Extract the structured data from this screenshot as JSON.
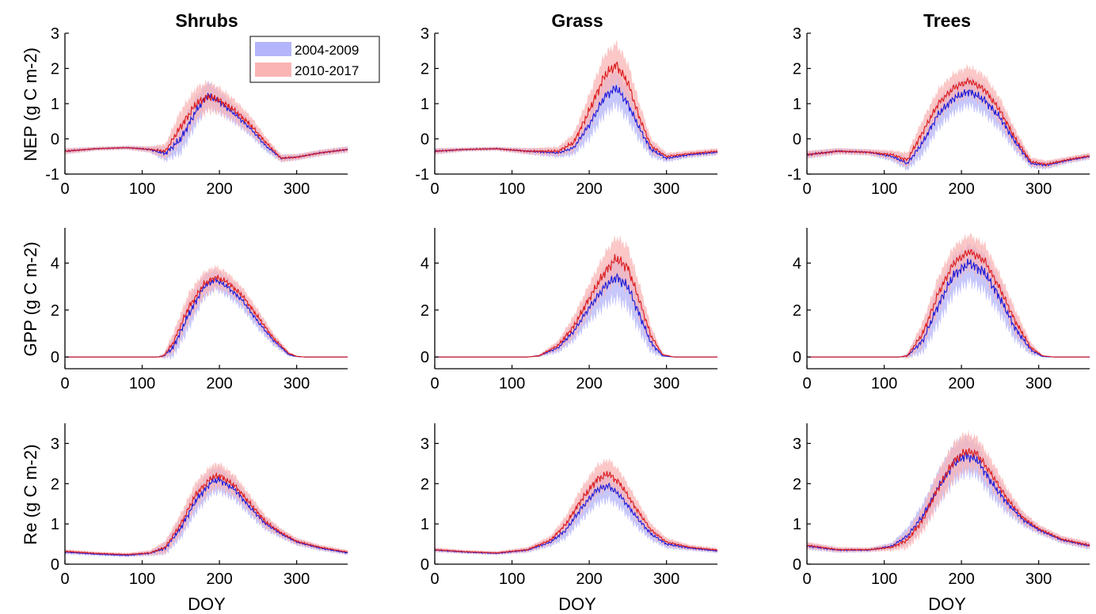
{
  "colors": {
    "period1": "#1a1adc",
    "period2": "#dc1a1a",
    "band1": "#b4b4fa",
    "band2": "#fab4b4"
  },
  "legend": [
    "2004-2009",
    "2010-2017"
  ],
  "columns": [
    "Shrubs",
    "Grass",
    "Trees"
  ],
  "rows": [
    {
      "ylabel": "NEP (g C m-2)",
      "ylim": [
        -1,
        3
      ],
      "yticks": [
        -1,
        0,
        1,
        2,
        3
      ]
    },
    {
      "ylabel": "GPP (g C m-2)",
      "ylim": [
        -0.5,
        5.5
      ],
      "yticks": [
        0,
        2,
        4
      ]
    },
    {
      "ylabel": "Re (g C m-2)",
      "ylim": [
        0,
        3.5
      ],
      "yticks": [
        0,
        1,
        2,
        3
      ]
    }
  ],
  "xlabel": "DOY",
  "xlim": [
    0,
    366
  ],
  "xticks": [
    0,
    100,
    200,
    300
  ],
  "chart_data": [
    {
      "type": "line",
      "panel": "Shrubs NEP",
      "ylim": [
        -1,
        3
      ],
      "x": [
        0,
        40,
        80,
        110,
        130,
        150,
        170,
        185,
        200,
        220,
        240,
        260,
        280,
        300,
        330,
        366
      ],
      "series": [
        {
          "name": "2004-2009",
          "mean": [
            -0.35,
            -0.28,
            -0.25,
            -0.3,
            -0.42,
            0.0,
            0.8,
            1.25,
            1.05,
            0.7,
            0.3,
            -0.2,
            -0.55,
            -0.52,
            -0.4,
            -0.3
          ],
          "sd": [
            0.08,
            0.05,
            0.05,
            0.08,
            0.2,
            0.4,
            0.4,
            0.35,
            0.3,
            0.25,
            0.2,
            0.15,
            0.1,
            0.08,
            0.08,
            0.08
          ]
        },
        {
          "name": "2010-2017",
          "mean": [
            -0.35,
            -0.28,
            -0.25,
            -0.3,
            -0.35,
            0.35,
            1.0,
            1.2,
            1.1,
            0.8,
            0.4,
            -0.1,
            -0.55,
            -0.52,
            -0.4,
            -0.3
          ],
          "sd": [
            0.08,
            0.05,
            0.05,
            0.08,
            0.2,
            0.45,
            0.45,
            0.4,
            0.35,
            0.3,
            0.25,
            0.15,
            0.1,
            0.08,
            0.08,
            0.08
          ]
        }
      ]
    },
    {
      "type": "line",
      "panel": "Grass NEP",
      "ylim": [
        -1,
        3
      ],
      "x": [
        0,
        40,
        80,
        120,
        160,
        180,
        200,
        220,
        235,
        250,
        265,
        280,
        300,
        330,
        366
      ],
      "series": [
        {
          "name": "2004-2009",
          "mean": [
            -0.35,
            -0.3,
            -0.28,
            -0.35,
            -0.4,
            -0.25,
            0.4,
            1.2,
            1.45,
            1.0,
            0.3,
            -0.3,
            -0.55,
            -0.45,
            -0.38
          ],
          "sd": [
            0.08,
            0.05,
            0.05,
            0.08,
            0.12,
            0.2,
            0.4,
            0.5,
            0.5,
            0.45,
            0.35,
            0.2,
            0.1,
            0.08,
            0.08
          ]
        },
        {
          "name": "2010-2017",
          "mean": [
            -0.35,
            -0.3,
            -0.28,
            -0.35,
            -0.35,
            -0.1,
            0.8,
            1.8,
            2.1,
            1.6,
            0.6,
            -0.2,
            -0.5,
            -0.42,
            -0.35
          ],
          "sd": [
            0.08,
            0.05,
            0.05,
            0.08,
            0.12,
            0.25,
            0.45,
            0.6,
            0.6,
            0.55,
            0.4,
            0.2,
            0.1,
            0.08,
            0.08
          ]
        }
      ]
    },
    {
      "type": "line",
      "panel": "Trees NEP",
      "ylim": [
        -1,
        3
      ],
      "x": [
        0,
        40,
        80,
        110,
        130,
        150,
        170,
        190,
        210,
        230,
        250,
        270,
        290,
        310,
        340,
        366
      ],
      "series": [
        {
          "name": "2004-2009",
          "mean": [
            -0.45,
            -0.35,
            -0.38,
            -0.5,
            -0.7,
            -0.1,
            0.7,
            1.15,
            1.35,
            1.1,
            0.6,
            -0.1,
            -0.7,
            -0.75,
            -0.6,
            -0.5
          ],
          "sd": [
            0.1,
            0.08,
            0.08,
            0.12,
            0.18,
            0.35,
            0.4,
            0.4,
            0.4,
            0.4,
            0.35,
            0.25,
            0.12,
            0.1,
            0.08,
            0.08
          ]
        },
        {
          "name": "2010-2017",
          "mean": [
            -0.45,
            -0.35,
            -0.38,
            -0.45,
            -0.6,
            0.2,
            1.0,
            1.45,
            1.65,
            1.4,
            0.8,
            0.0,
            -0.65,
            -0.72,
            -0.58,
            -0.48
          ],
          "sd": [
            0.1,
            0.08,
            0.08,
            0.12,
            0.2,
            0.35,
            0.4,
            0.4,
            0.4,
            0.4,
            0.35,
            0.25,
            0.12,
            0.1,
            0.08,
            0.08
          ]
        }
      ]
    },
    {
      "type": "line",
      "panel": "Shrubs GPP",
      "ylim": [
        -0.5,
        5.5
      ],
      "x": [
        0,
        120,
        128,
        140,
        160,
        180,
        195,
        210,
        230,
        250,
        270,
        290,
        300,
        310,
        366
      ],
      "series": [
        {
          "name": "2004-2009",
          "mean": [
            0,
            0,
            0.05,
            0.4,
            1.8,
            3.0,
            3.3,
            3.0,
            2.4,
            1.5,
            0.7,
            0.1,
            0.02,
            0,
            0
          ],
          "sd": [
            0,
            0,
            0.1,
            0.4,
            0.6,
            0.5,
            0.4,
            0.4,
            0.35,
            0.3,
            0.2,
            0.08,
            0.02,
            0,
            0
          ]
        },
        {
          "name": "2010-2017",
          "mean": [
            0,
            0,
            0.05,
            0.6,
            2.1,
            3.1,
            3.4,
            3.2,
            2.6,
            1.7,
            0.8,
            0.15,
            0.03,
            0,
            0
          ],
          "sd": [
            0,
            0,
            0.1,
            0.4,
            0.6,
            0.5,
            0.45,
            0.4,
            0.35,
            0.3,
            0.2,
            0.08,
            0.02,
            0,
            0
          ]
        }
      ]
    },
    {
      "type": "line",
      "panel": "Grass GPP",
      "ylim": [
        -0.5,
        5.5
      ],
      "x": [
        0,
        120,
        135,
        160,
        180,
        200,
        220,
        235,
        250,
        265,
        280,
        295,
        310,
        366
      ],
      "series": [
        {
          "name": "2004-2009",
          "mean": [
            0,
            0,
            0.05,
            0.4,
            1.1,
            2.1,
            3.0,
            3.4,
            3.0,
            1.8,
            0.6,
            0.05,
            0,
            0
          ],
          "sd": [
            0,
            0,
            0.05,
            0.2,
            0.4,
            0.6,
            0.8,
            0.9,
            0.9,
            0.7,
            0.4,
            0.05,
            0,
            0
          ]
        },
        {
          "name": "2010-2017",
          "mean": [
            0,
            0,
            0.05,
            0.5,
            1.3,
            2.5,
            3.6,
            4.2,
            3.8,
            2.4,
            0.9,
            0.1,
            0,
            0
          ],
          "sd": [
            0,
            0,
            0.05,
            0.2,
            0.45,
            0.6,
            0.8,
            0.9,
            0.9,
            0.7,
            0.4,
            0.05,
            0,
            0
          ]
        }
      ]
    },
    {
      "type": "line",
      "panel": "Trees GPP",
      "ylim": [
        -0.5,
        5.5
      ],
      "x": [
        0,
        120,
        130,
        150,
        170,
        190,
        210,
        230,
        250,
        270,
        290,
        305,
        320,
        366
      ],
      "series": [
        {
          "name": "2004-2009",
          "mean": [
            0,
            0,
            0.05,
            0.7,
            2.2,
            3.5,
            4.0,
            3.6,
            2.5,
            1.2,
            0.3,
            0.02,
            0,
            0
          ],
          "sd": [
            0,
            0,
            0.1,
            0.5,
            0.8,
            0.8,
            0.8,
            0.8,
            0.7,
            0.5,
            0.2,
            0.02,
            0,
            0
          ]
        },
        {
          "name": "2010-2017",
          "mean": [
            0,
            0,
            0.05,
            1.0,
            2.7,
            4.0,
            4.5,
            4.1,
            2.9,
            1.5,
            0.4,
            0.05,
            0,
            0
          ],
          "sd": [
            0,
            0,
            0.1,
            0.5,
            0.7,
            0.7,
            0.7,
            0.7,
            0.6,
            0.5,
            0.2,
            0.02,
            0,
            0
          ]
        }
      ]
    },
    {
      "type": "line",
      "panel": "Shrubs Re",
      "ylim": [
        0,
        3.5
      ],
      "x": [
        0,
        40,
        80,
        110,
        130,
        150,
        170,
        190,
        200,
        220,
        240,
        260,
        280,
        300,
        330,
        366
      ],
      "series": [
        {
          "name": "2004-2009",
          "mean": [
            0.3,
            0.25,
            0.22,
            0.27,
            0.4,
            0.9,
            1.6,
            2.05,
            2.1,
            1.85,
            1.4,
            1.0,
            0.75,
            0.55,
            0.4,
            0.28
          ],
          "sd": [
            0.05,
            0.04,
            0.04,
            0.06,
            0.15,
            0.25,
            0.3,
            0.3,
            0.3,
            0.25,
            0.2,
            0.15,
            0.1,
            0.08,
            0.06,
            0.05
          ]
        },
        {
          "name": "2010-2017",
          "mean": [
            0.32,
            0.27,
            0.24,
            0.28,
            0.42,
            1.0,
            1.75,
            2.15,
            2.2,
            1.95,
            1.5,
            1.05,
            0.78,
            0.57,
            0.42,
            0.3
          ],
          "sd": [
            0.05,
            0.04,
            0.04,
            0.06,
            0.15,
            0.25,
            0.3,
            0.3,
            0.3,
            0.25,
            0.2,
            0.15,
            0.1,
            0.08,
            0.06,
            0.05
          ]
        }
      ]
    },
    {
      "type": "line",
      "panel": "Grass Re",
      "ylim": [
        0,
        3.5
      ],
      "x": [
        0,
        40,
        80,
        120,
        150,
        170,
        190,
        210,
        225,
        240,
        260,
        280,
        300,
        330,
        366
      ],
      "series": [
        {
          "name": "2004-2009",
          "mean": [
            0.35,
            0.3,
            0.27,
            0.35,
            0.55,
            0.85,
            1.4,
            1.85,
            1.95,
            1.7,
            1.2,
            0.75,
            0.5,
            0.4,
            0.33
          ],
          "sd": [
            0.05,
            0.04,
            0.04,
            0.06,
            0.1,
            0.2,
            0.3,
            0.35,
            0.35,
            0.3,
            0.25,
            0.15,
            0.1,
            0.06,
            0.05
          ]
        },
        {
          "name": "2010-2017",
          "mean": [
            0.36,
            0.31,
            0.28,
            0.36,
            0.6,
            1.0,
            1.6,
            2.1,
            2.25,
            2.0,
            1.4,
            0.85,
            0.55,
            0.42,
            0.35
          ],
          "sd": [
            0.05,
            0.04,
            0.04,
            0.06,
            0.1,
            0.2,
            0.3,
            0.35,
            0.35,
            0.3,
            0.25,
            0.15,
            0.1,
            0.06,
            0.05
          ]
        }
      ]
    },
    {
      "type": "line",
      "panel": "Trees Re",
      "ylim": [
        0,
        3.5
      ],
      "x": [
        0,
        40,
        80,
        110,
        130,
        150,
        170,
        190,
        205,
        220,
        240,
        260,
        280,
        300,
        330,
        366
      ],
      "series": [
        {
          "name": "2004-2009",
          "mean": [
            0.45,
            0.35,
            0.35,
            0.45,
            0.7,
            1.2,
            1.9,
            2.5,
            2.7,
            2.6,
            2.0,
            1.5,
            1.1,
            0.85,
            0.6,
            0.45
          ],
          "sd": [
            0.08,
            0.06,
            0.05,
            0.08,
            0.2,
            0.3,
            0.4,
            0.45,
            0.45,
            0.4,
            0.35,
            0.25,
            0.15,
            0.1,
            0.08,
            0.08
          ]
        },
        {
          "name": "2010-2017",
          "mean": [
            0.47,
            0.36,
            0.36,
            0.42,
            0.6,
            1.1,
            1.9,
            2.55,
            2.8,
            2.75,
            2.2,
            1.6,
            1.15,
            0.88,
            0.62,
            0.47
          ],
          "sd": [
            0.08,
            0.06,
            0.05,
            0.08,
            0.2,
            0.3,
            0.4,
            0.45,
            0.45,
            0.4,
            0.35,
            0.25,
            0.15,
            0.1,
            0.08,
            0.08
          ]
        }
      ]
    }
  ]
}
